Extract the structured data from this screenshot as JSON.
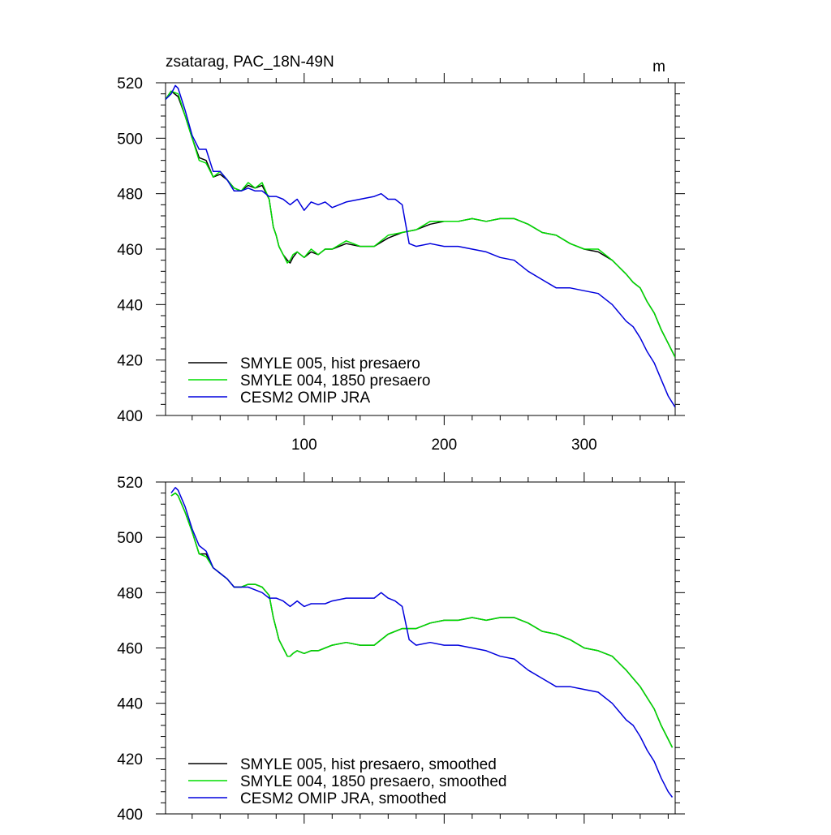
{
  "chart_data": [
    {
      "type": "line",
      "title": "zsatarag, PAC_18N-49N",
      "units": "m",
      "xlim": [
        1,
        365
      ],
      "ylim": [
        400,
        520
      ],
      "xticks": [
        100,
        200,
        300
      ],
      "yticks": [
        400,
        420,
        440,
        460,
        480,
        500,
        520
      ],
      "xtick_labels": [
        "100",
        "200",
        "300"
      ],
      "ytick_labels": [
        "400",
        "420",
        "440",
        "460",
        "480",
        "500",
        "520"
      ],
      "legend_position": "bottom-left",
      "series": [
        {
          "name": "SMYLE 005, hist presaero",
          "color": "#000000",
          "x": [
            1,
            5,
            10,
            15,
            20,
            25,
            30,
            35,
            40,
            45,
            50,
            55,
            60,
            65,
            70,
            75,
            78,
            80,
            82,
            85,
            88,
            90,
            92,
            95,
            100,
            105,
            110,
            115,
            120,
            130,
            140,
            150,
            160,
            170,
            180,
            190,
            200,
            210,
            220,
            230,
            240,
            250,
            260,
            270,
            280,
            290,
            300,
            310,
            320,
            330,
            335,
            340,
            345,
            350,
            355,
            360,
            365
          ],
          "values": [
            514,
            517,
            515,
            508,
            500,
            493,
            492,
            486,
            487,
            485,
            482,
            481,
            483,
            482,
            483,
            478,
            468,
            465,
            461,
            458,
            456,
            455,
            457,
            459,
            457,
            459,
            458,
            460,
            460,
            462,
            461,
            461,
            464,
            466,
            467,
            469,
            470,
            470,
            471,
            470,
            471,
            471,
            469,
            466,
            465,
            462,
            460,
            459,
            456,
            451,
            448,
            446,
            441,
            437,
            431,
            426,
            421
          ]
        },
        {
          "name": "SMYLE 004, 1850 presaero",
          "color": "#00dd00",
          "x": [
            1,
            5,
            10,
            15,
            20,
            25,
            30,
            35,
            40,
            45,
            50,
            55,
            60,
            65,
            70,
            75,
            78,
            80,
            82,
            85,
            88,
            90,
            92,
            95,
            100,
            105,
            110,
            115,
            120,
            130,
            140,
            150,
            160,
            170,
            180,
            190,
            200,
            210,
            220,
            230,
            240,
            250,
            260,
            270,
            280,
            290,
            300,
            310,
            320,
            330,
            335,
            340,
            345,
            350,
            355,
            360,
            365
          ],
          "values": [
            514,
            517,
            516,
            508,
            500,
            492,
            491,
            486,
            488,
            485,
            482,
            481,
            484,
            482,
            484,
            478,
            468,
            465,
            461,
            458,
            455,
            456,
            458,
            459,
            457,
            460,
            458,
            460,
            460,
            463,
            461,
            461,
            465,
            466,
            467,
            470,
            470,
            470,
            471,
            470,
            471,
            471,
            469,
            466,
            465,
            462,
            460,
            460,
            456,
            451,
            448,
            446,
            441,
            437,
            431,
            426,
            421
          ]
        },
        {
          "name": "CESM2 OMIP JRA",
          "color": "#0000dd",
          "x": [
            1,
            5,
            8,
            10,
            15,
            20,
            25,
            30,
            35,
            40,
            45,
            50,
            55,
            60,
            65,
            70,
            75,
            80,
            85,
            90,
            95,
            100,
            105,
            110,
            115,
            120,
            130,
            140,
            150,
            155,
            160,
            165,
            170,
            175,
            180,
            190,
            200,
            210,
            220,
            230,
            240,
            250,
            260,
            270,
            280,
            290,
            300,
            310,
            320,
            330,
            335,
            340,
            345,
            350,
            355,
            360,
            365
          ],
          "values": [
            514,
            516,
            519,
            518,
            510,
            501,
            496,
            496,
            488,
            488,
            485,
            481,
            481,
            482,
            481,
            481,
            479,
            479,
            478,
            476,
            478,
            474,
            477,
            476,
            477,
            475,
            477,
            478,
            479,
            480,
            478,
            478,
            476,
            462,
            461,
            462,
            461,
            461,
            460,
            459,
            457,
            456,
            452,
            449,
            446,
            446,
            445,
            444,
            440,
            434,
            432,
            428,
            423,
            419,
            413,
            407,
            403
          ]
        }
      ]
    },
    {
      "type": "line",
      "title": "",
      "xlim": [
        1,
        365
      ],
      "ylim": [
        400,
        520
      ],
      "xticks": [
        100,
        200,
        300
      ],
      "yticks": [
        400,
        420,
        440,
        460,
        480,
        500,
        520
      ],
      "ytick_labels": [
        "400",
        "420",
        "440",
        "460",
        "480",
        "500",
        "520"
      ],
      "legend_position": "bottom-left",
      "series": [
        {
          "name": "SMYLE 005, hist presaero, smoothed",
          "color": "#000000",
          "x": [
            5,
            8,
            10,
            15,
            20,
            25,
            30,
            35,
            40,
            45,
            50,
            55,
            60,
            65,
            70,
            75,
            78,
            80,
            82,
            85,
            88,
            90,
            92,
            95,
            100,
            105,
            110,
            115,
            120,
            130,
            140,
            150,
            160,
            170,
            180,
            190,
            200,
            210,
            220,
            230,
            240,
            250,
            260,
            270,
            280,
            290,
            300,
            310,
            320,
            330,
            335,
            340,
            345,
            350,
            355,
            360,
            363
          ],
          "values": [
            515,
            516,
            515,
            509,
            502,
            494,
            494,
            489,
            487,
            485,
            482,
            482,
            483,
            483,
            482,
            479,
            471,
            467,
            463,
            460,
            457,
            457,
            458,
            459,
            458,
            459,
            459,
            460,
            461,
            462,
            461,
            461,
            465,
            467,
            467,
            469,
            470,
            470,
            471,
            470,
            471,
            471,
            469,
            466,
            465,
            463,
            460,
            459,
            457,
            452,
            449,
            446,
            442,
            438,
            432,
            427,
            424
          ]
        },
        {
          "name": "SMYLE 004, 1850 presaero, smoothed",
          "color": "#00dd00",
          "x": [
            5,
            8,
            10,
            15,
            20,
            25,
            30,
            35,
            40,
            45,
            50,
            55,
            60,
            65,
            70,
            75,
            78,
            80,
            82,
            85,
            88,
            90,
            92,
            95,
            100,
            105,
            110,
            115,
            120,
            130,
            140,
            150,
            160,
            170,
            180,
            190,
            200,
            210,
            220,
            230,
            240,
            250,
            260,
            270,
            280,
            290,
            300,
            310,
            320,
            330,
            335,
            340,
            345,
            350,
            355,
            360,
            363
          ],
          "values": [
            515,
            516,
            515,
            509,
            502,
            494,
            493,
            489,
            487,
            485,
            482,
            482,
            483,
            483,
            482,
            479,
            471,
            467,
            463,
            460,
            457,
            457,
            458,
            459,
            458,
            459,
            459,
            460,
            461,
            462,
            461,
            461,
            465,
            467,
            467,
            469,
            470,
            470,
            471,
            470,
            471,
            471,
            469,
            466,
            465,
            463,
            460,
            459,
            457,
            452,
            449,
            446,
            442,
            438,
            432,
            427,
            424
          ]
        },
        {
          "name": "CESM2 OMIP JRA, smoothed",
          "color": "#0000dd",
          "x": [
            5,
            8,
            10,
            15,
            20,
            25,
            30,
            35,
            40,
            45,
            50,
            55,
            60,
            65,
            70,
            75,
            80,
            85,
            90,
            95,
            100,
            105,
            110,
            115,
            120,
            130,
            140,
            150,
            155,
            160,
            165,
            170,
            175,
            180,
            190,
            200,
            210,
            220,
            230,
            240,
            250,
            260,
            270,
            280,
            290,
            300,
            310,
            320,
            330,
            335,
            340,
            345,
            350,
            355,
            360,
            363
          ],
          "values": [
            516,
            518,
            517,
            511,
            503,
            497,
            495,
            489,
            487,
            485,
            482,
            482,
            482,
            481,
            480,
            478,
            478,
            477,
            475,
            477,
            475,
            476,
            476,
            476,
            477,
            478,
            478,
            478,
            480,
            478,
            477,
            475,
            463,
            461,
            462,
            461,
            461,
            460,
            459,
            457,
            456,
            452,
            449,
            446,
            446,
            445,
            444,
            440,
            434,
            432,
            428,
            423,
            419,
            413,
            408,
            406
          ]
        }
      ]
    }
  ]
}
